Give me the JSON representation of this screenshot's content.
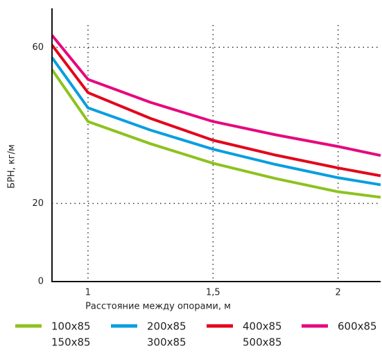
{
  "chart_data": {
    "type": "line",
    "x_label": "Расстояние между опорами, м",
    "y_label": "БРН, кг/м",
    "x": [
      0.856,
      1,
      1.25,
      1.5,
      1.75,
      2,
      2.17
    ],
    "series": [
      {
        "name": "100x85",
        "subname": "150x85",
        "color": "#8dc21f",
        "values": [
          54.3,
          41,
          35.3,
          30.3,
          26.4,
          23,
          21.6
        ]
      },
      {
        "name": "200x85",
        "subname": "300x85",
        "color": "#0a9ee0",
        "values": [
          57.4,
          44.5,
          38.8,
          33.9,
          30,
          26.6,
          24.8
        ]
      },
      {
        "name": "400x85",
        "subname": "500x85",
        "color": "#e3061b",
        "values": [
          60.6,
          48.4,
          41.8,
          36.2,
          32.4,
          29.1,
          27.1
        ]
      },
      {
        "name": "600x85",
        "color": "#e5097f",
        "values": [
          63.1,
          51.8,
          45.9,
          41,
          37.6,
          34.6,
          32.3
        ]
      }
    ],
    "xlim": [
      0.856,
      2.17
    ],
    "ylim": [
      0,
      70
    ],
    "xticks": [
      1,
      {
        "value": 1.5,
        "label": "1,5"
      },
      2
    ],
    "yticks": [
      0,
      20,
      60
    ],
    "grid": true
  }
}
